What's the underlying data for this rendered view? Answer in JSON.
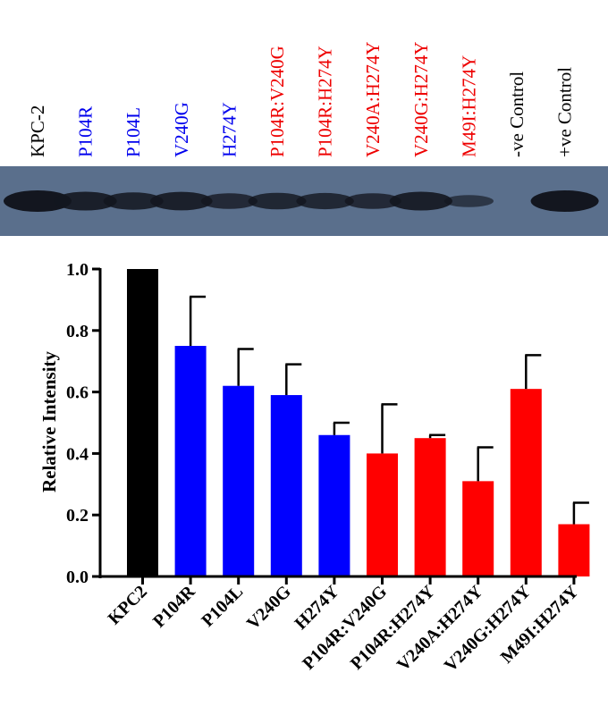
{
  "blot": {
    "lanes": [
      {
        "label": "KPC-2",
        "color": "#000000",
        "band": 1.0
      },
      {
        "label": "P104R",
        "color": "#0000ee",
        "band": 0.82
      },
      {
        "label": "P104L",
        "color": "#0000ee",
        "band": 0.72
      },
      {
        "label": "V240G",
        "color": "#0000ee",
        "band": 0.8
      },
      {
        "label": "H274Y",
        "color": "#0000ee",
        "band": 0.6
      },
      {
        "label": "P104R:V240G",
        "color": "#ee0000",
        "band": 0.66
      },
      {
        "label": "P104R:H274Y",
        "color": "#ee0000",
        "band": 0.64
      },
      {
        "label": "V240A:H274Y",
        "color": "#ee0000",
        "band": 0.6
      },
      {
        "label": "V240G:H274Y",
        "color": "#ee0000",
        "band": 0.82
      },
      {
        "label": "M49I:H274Y",
        "color": "#ee0000",
        "band": 0.35
      },
      {
        "label": "-ve Control",
        "color": "#000000",
        "band": 0.0
      },
      {
        "label": "+ve Control",
        "color": "#000000",
        "band": 1.0
      }
    ],
    "background": "#5a6f8c",
    "band_color": "#13161f"
  },
  "chart_data": {
    "type": "bar",
    "title": "",
    "xlabel": "",
    "ylabel": "Relative Intensity",
    "ylim": [
      0.0,
      1.0
    ],
    "yticks": [
      "0.0",
      "0.2",
      "0.4",
      "0.6",
      "0.8",
      "1.0"
    ],
    "grid": false,
    "categories": [
      "KPC2",
      "P104R",
      "P104L",
      "V240G",
      "H274Y",
      "P104R:V240G",
      "P104R:H274Y",
      "V240A:H274Y",
      "V240G:H274Y",
      "M49I:H274Y"
    ],
    "values": [
      1.0,
      0.75,
      0.62,
      0.59,
      0.46,
      0.4,
      0.45,
      0.31,
      0.61,
      0.17
    ],
    "errors": [
      0.0,
      0.16,
      0.12,
      0.1,
      0.04,
      0.16,
      0.01,
      0.11,
      0.11,
      0.07
    ],
    "colors": [
      "#000000",
      "#0000ff",
      "#0000ff",
      "#0000ff",
      "#0000ff",
      "#ff0000",
      "#ff0000",
      "#ff0000",
      "#ff0000",
      "#ff0000"
    ]
  }
}
